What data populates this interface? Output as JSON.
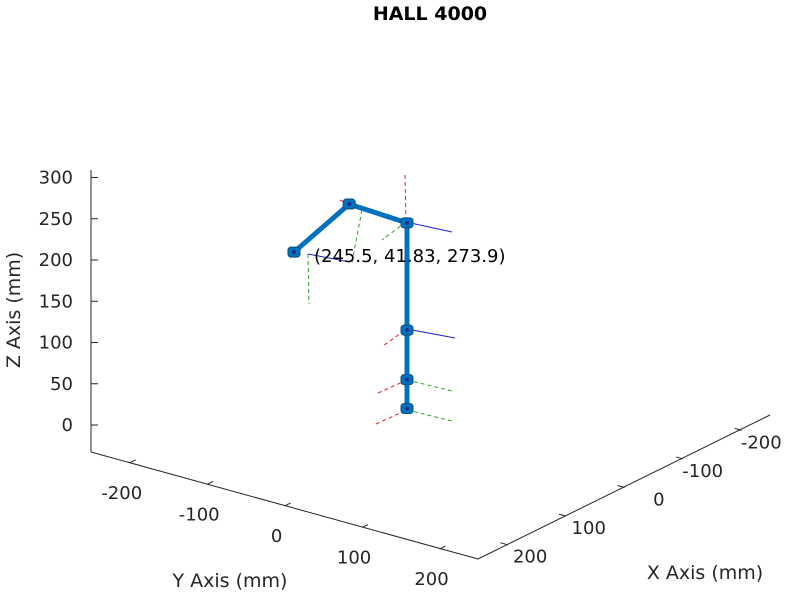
{
  "chart_data": {
    "type": "line",
    "title": "HALL 4000",
    "xlabel": "X Axis (mm)",
    "ylabel": "Y Axis (mm)",
    "zlabel": "Z Axis (mm)",
    "x_ticks": [
      "-200",
      "-100",
      "0",
      "100",
      "200"
    ],
    "y_ticks": [
      "-200",
      "-100",
      "0",
      "100",
      "200"
    ],
    "z_ticks": [
      "0",
      "50",
      "100",
      "150",
      "200",
      "250",
      "300"
    ],
    "xlim": [
      -250,
      250
    ],
    "ylim": [
      -250,
      250
    ],
    "zlim": [
      -30,
      310
    ],
    "grid": false,
    "series": [
      {
        "color": "#0072BD",
        "points": [
          {
            "x": 0,
            "y": 0,
            "z": 20
          },
          {
            "x": 0,
            "y": 0,
            "z": 55
          },
          {
            "x": 0,
            "y": 0,
            "z": 115
          },
          {
            "x": 0,
            "y": 0,
            "z": 245
          },
          {
            "x": 40,
            "y": -55,
            "z": 265
          },
          {
            "x": 245.5,
            "y": 41.83,
            "z": 273.9
          }
        ]
      }
    ],
    "annotation": {
      "text": "(245.5, 41.83, 273.9)"
    }
  }
}
